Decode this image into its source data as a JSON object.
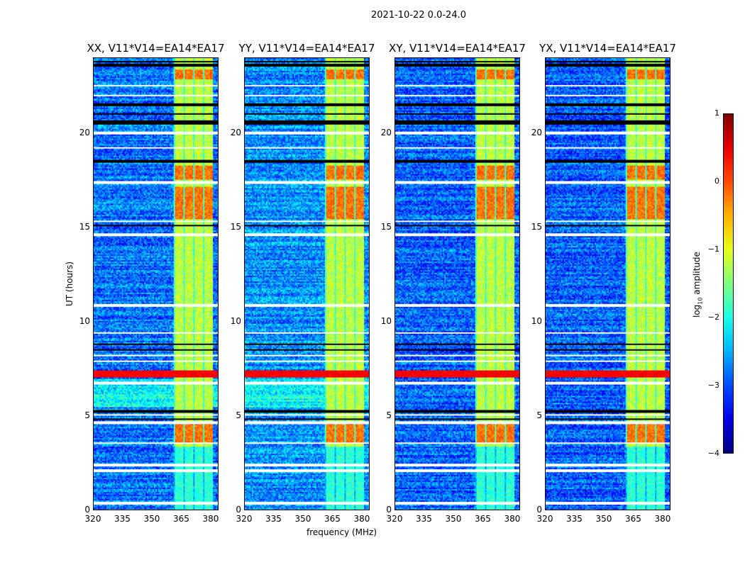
{
  "chart_data": {
    "type": "heatmap",
    "suptitle": "2021-10-22 0.0-24.0",
    "xlabel": "frequency (MHz)",
    "ylabel": "UT (hours)",
    "xlim": [
      320,
      384
    ],
    "ylim": [
      0,
      24
    ],
    "xticks": [
      "320",
      "335",
      "350",
      "365",
      "380"
    ],
    "xtick_values": [
      320,
      335,
      350,
      365,
      380
    ],
    "yticks": [
      "0",
      "5",
      "10",
      "15",
      "20"
    ],
    "ytick_values": [
      0,
      5,
      10,
      15,
      20
    ],
    "panels": [
      {
        "title": "XX, V11*V14=EA14*EA17",
        "row_offset": 0.0
      },
      {
        "title": "YY, V11*V14=EA14*EA17",
        "row_offset": 0.15
      },
      {
        "title": "XY, V11*V14=EA14*EA17",
        "row_offset": -0.1
      },
      {
        "title": "YX, V11*V14=EA14*EA17",
        "row_offset": -0.1
      }
    ],
    "colorbar": {
      "label": "log10 amplitude",
      "label_main": "log",
      "label_sub": "10",
      "label_rest": " amplitude",
      "range": [
        -4,
        1
      ],
      "ticks": [
        "1",
        "0",
        "−1",
        "−2",
        "−3",
        "−4"
      ],
      "tick_values": [
        1,
        0,
        -1,
        -2,
        -3,
        -4
      ],
      "colormap": "jet"
    },
    "background_level": -2.8,
    "rfi_band_mhz": [
      361,
      381
    ],
    "rfi_band_level": -1.2,
    "hot_periods_hours": [
      [
        3.6,
        4.6
      ],
      [
        15.5,
        17.2
      ],
      [
        17.6,
        18.3
      ],
      [
        22.9,
        23.4
      ]
    ],
    "hot_level": -0.2,
    "saturated_rows_hours": [
      [
        7.05,
        7.45
      ]
    ],
    "saturated_level": 0.4,
    "flagged_rows_hours": [
      [
        0.3,
        0.45
      ],
      [
        2.0,
        2.15
      ],
      [
        2.35,
        2.5
      ],
      [
        3.5,
        3.6
      ],
      [
        4.6,
        4.7
      ],
      [
        5.0,
        5.1
      ],
      [
        6.7,
        6.8
      ],
      [
        7.9,
        8.0
      ],
      [
        8.2,
        8.3
      ],
      [
        9.4,
        9.5
      ],
      [
        10.8,
        10.95
      ],
      [
        14.6,
        14.7
      ],
      [
        15.3,
        15.4
      ],
      [
        17.35,
        17.5
      ],
      [
        19.2,
        19.3
      ],
      [
        20.0,
        20.15
      ],
      [
        22.0,
        22.1
      ],
      [
        22.5,
        22.6
      ]
    ],
    "dropout_rows_hours": [
      [
        4.8,
        4.9
      ],
      [
        5.2,
        5.3
      ],
      [
        8.5,
        8.6
      ],
      [
        8.8,
        8.9
      ],
      [
        15.1,
        15.2
      ],
      [
        18.5,
        18.6
      ],
      [
        20.5,
        20.7
      ],
      [
        21.0,
        21.1
      ],
      [
        21.5,
        21.6
      ],
      [
        23.6,
        23.7
      ],
      [
        23.8,
        23.9
      ]
    ]
  }
}
